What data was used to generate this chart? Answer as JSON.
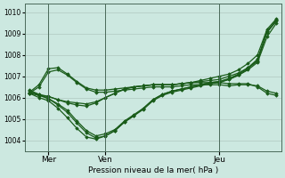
{
  "background_color": "#cce8e0",
  "grid_color": "#b0c8c0",
  "line_color": "#1a5c1a",
  "marker_color": "#1a5c1a",
  "xlabel": "Pression niveau de la mer( hPa )",
  "ylim": [
    1003.5,
    1010.4
  ],
  "yticks": [
    1004,
    1005,
    1006,
    1007,
    1008,
    1009,
    1010
  ],
  "xtick_labels": [
    "Mer",
    "Ven",
    "Jeu"
  ],
  "xtick_positions": [
    2,
    8,
    20
  ],
  "vlines_x": [
    2,
    8,
    20
  ],
  "n_points": 27,
  "series": [
    [
      1006.2,
      1006.1,
      1006.05,
      1005.9,
      1005.8,
      1005.75,
      1005.7,
      1005.8,
      1006.0,
      1006.2,
      1006.4,
      1006.5,
      1006.55,
      1006.6,
      1006.6,
      1006.6,
      1006.65,
      1006.7,
      1006.75,
      1006.8,
      1006.85,
      1007.0,
      1007.15,
      1007.4,
      1007.7,
      1009.1,
      1009.6
    ],
    [
      1006.25,
      1006.15,
      1006.05,
      1005.9,
      1005.75,
      1005.65,
      1005.6,
      1005.75,
      1006.0,
      1006.2,
      1006.4,
      1006.5,
      1006.55,
      1006.6,
      1006.6,
      1006.6,
      1006.65,
      1006.7,
      1006.8,
      1006.9,
      1007.0,
      1007.1,
      1007.3,
      1007.6,
      1008.0,
      1009.2,
      1009.7
    ],
    [
      1006.3,
      1006.1,
      1005.95,
      1005.7,
      1005.4,
      1004.9,
      1004.45,
      1004.2,
      1004.3,
      1004.5,
      1004.9,
      1005.2,
      1005.5,
      1005.9,
      1006.15,
      1006.3,
      1006.4,
      1006.5,
      1006.6,
      1006.7,
      1006.75,
      1006.9,
      1007.1,
      1007.4,
      1007.8,
      1009.1,
      1009.65
    ],
    [
      1006.35,
      1006.15,
      1005.95,
      1005.65,
      1005.3,
      1004.8,
      1004.35,
      1004.1,
      1004.2,
      1004.45,
      1004.85,
      1005.15,
      1005.45,
      1005.85,
      1006.1,
      1006.25,
      1006.35,
      1006.45,
      1006.55,
      1006.65,
      1006.7,
      1006.85,
      1007.05,
      1007.35,
      1007.75,
      1009.05,
      1009.6
    ],
    [
      1006.2,
      1006.0,
      1005.85,
      1005.5,
      1005.05,
      1004.55,
      1004.15,
      1004.05,
      1004.2,
      1004.45,
      1004.85,
      1005.15,
      1005.5,
      1005.9,
      1006.15,
      1006.3,
      1006.4,
      1006.5,
      1006.6,
      1006.7,
      1006.75,
      1006.85,
      1007.05,
      1007.3,
      1007.65,
      1008.85,
      1009.5
    ],
    [
      1006.25,
      1006.6,
      1007.35,
      1007.4,
      1007.1,
      1006.75,
      1006.45,
      1006.35,
      1006.35,
      1006.4,
      1006.45,
      1006.5,
      1006.55,
      1006.6,
      1006.6,
      1006.6,
      1006.65,
      1006.7,
      1006.7,
      1006.7,
      1006.7,
      1006.65,
      1006.65,
      1006.65,
      1006.5,
      1006.2,
      1006.1
    ],
    [
      1006.2,
      1006.5,
      1007.2,
      1007.3,
      1007.05,
      1006.7,
      1006.4,
      1006.25,
      1006.25,
      1006.3,
      1006.35,
      1006.4,
      1006.45,
      1006.5,
      1006.5,
      1006.5,
      1006.55,
      1006.6,
      1006.6,
      1006.6,
      1006.6,
      1006.55,
      1006.6,
      1006.6,
      1006.55,
      1006.3,
      1006.2
    ]
  ],
  "show_markers": true,
  "marker_style": "D",
  "marker_size": 1.8,
  "linewidth": 0.9
}
